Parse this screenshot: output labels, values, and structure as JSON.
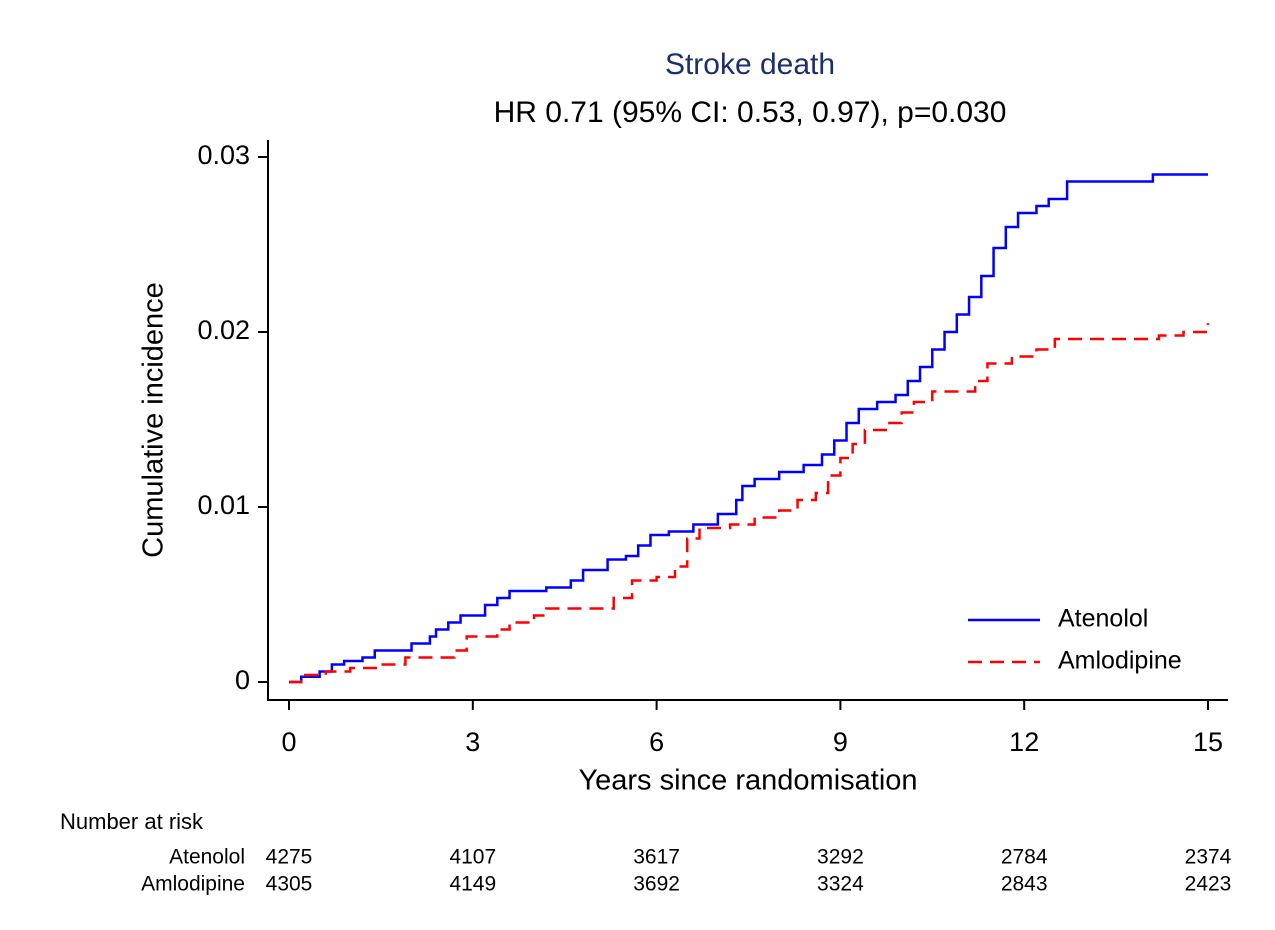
{
  "chart_data": {
    "type": "step",
    "title": "Stroke death",
    "subtitle": "HR 0.71 (95% CI: 0.53, 0.97), p=0.030",
    "title_color": "#1a2f6b",
    "x_label": "Years since randomisation",
    "y_label": "Cumulative incidence",
    "xlim": [
      0,
      15
    ],
    "xticks": [
      0,
      3,
      6,
      9,
      12,
      15
    ],
    "ylim": [
      0,
      0.03
    ],
    "yticks": [
      0,
      0.01,
      0.02,
      0.03
    ],
    "grid": false,
    "legend": "bottom-right",
    "series": [
      {
        "name": "Atenolol",
        "color": "#0000ff",
        "dash": "solid",
        "x": [
          0,
          0.2,
          0.5,
          0.7,
          0.9,
          1.2,
          1.4,
          2.0,
          2.3,
          2.4,
          2.6,
          2.8,
          3.2,
          3.4,
          3.6,
          4.2,
          4.6,
          4.8,
          5.2,
          5.5,
          5.7,
          5.9,
          6.2,
          6.6,
          7.0,
          7.3,
          7.4,
          7.6,
          8.0,
          8.4,
          8.7,
          8.9,
          9.1,
          9.3,
          9.6,
          9.9,
          10.1,
          10.3,
          10.5,
          10.7,
          10.9,
          11.1,
          11.3,
          11.5,
          11.7,
          11.9,
          12.2,
          12.4,
          12.7,
          14.1,
          15
        ],
        "values": [
          0,
          0.0003,
          0.0006,
          0.001,
          0.0012,
          0.0014,
          0.0018,
          0.0022,
          0.0026,
          0.003,
          0.0034,
          0.0038,
          0.0044,
          0.0048,
          0.0052,
          0.0054,
          0.0058,
          0.0064,
          0.007,
          0.0072,
          0.0078,
          0.0084,
          0.0086,
          0.009,
          0.0096,
          0.0104,
          0.0112,
          0.0116,
          0.012,
          0.0124,
          0.013,
          0.0138,
          0.0148,
          0.0156,
          0.016,
          0.0164,
          0.0172,
          0.018,
          0.019,
          0.02,
          0.021,
          0.022,
          0.0232,
          0.0248,
          0.026,
          0.0268,
          0.0272,
          0.0276,
          0.0286,
          0.029,
          0.029
        ]
      },
      {
        "name": "Amlodipine",
        "color": "#ff0000",
        "dash": "dashed",
        "x": [
          0,
          0.2,
          0.6,
          1.0,
          1.5,
          1.9,
          2.7,
          2.9,
          3.4,
          3.6,
          4.0,
          4.2,
          5.3,
          5.6,
          6.0,
          6.3,
          6.5,
          6.7,
          7.2,
          7.6,
          8.0,
          8.3,
          8.6,
          8.8,
          9.0,
          9.2,
          9.4,
          9.8,
          10.0,
          10.2,
          10.5,
          11.2,
          11.4,
          11.8,
          12.2,
          12.5,
          14.2,
          14.6,
          15
        ],
        "values": [
          0,
          0.0004,
          0.0006,
          0.0008,
          0.001,
          0.0014,
          0.0018,
          0.0026,
          0.003,
          0.0034,
          0.0038,
          0.0042,
          0.0048,
          0.0058,
          0.006,
          0.0066,
          0.0082,
          0.0088,
          0.009,
          0.0094,
          0.0098,
          0.0104,
          0.0108,
          0.0118,
          0.0128,
          0.0136,
          0.0144,
          0.0148,
          0.0154,
          0.016,
          0.0166,
          0.0172,
          0.0182,
          0.0186,
          0.019,
          0.0196,
          0.0198,
          0.02,
          0.0205
        ]
      }
    ],
    "risk_table": {
      "title": "Number at risk",
      "times": [
        0,
        3,
        6,
        9,
        12,
        15
      ],
      "rows": [
        {
          "label": "Atenolol",
          "values": [
            4275,
            4107,
            3617,
            3292,
            2784,
            2374
          ]
        },
        {
          "label": "Amlodipine",
          "values": [
            4305,
            4149,
            3692,
            3324,
            2843,
            2423
          ]
        }
      ]
    }
  }
}
